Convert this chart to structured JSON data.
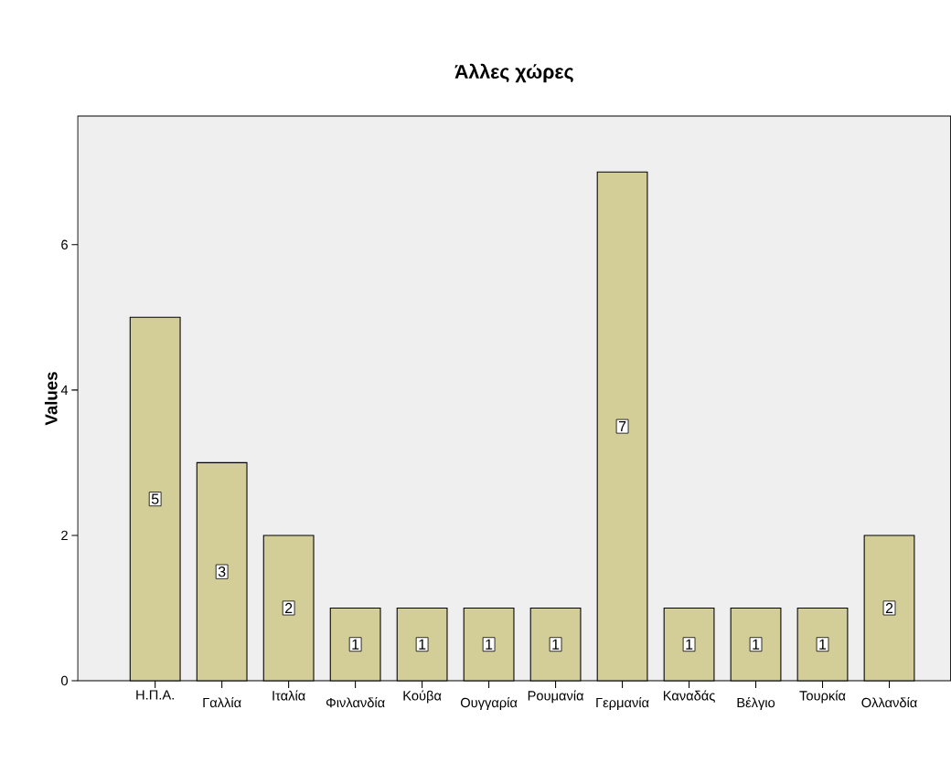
{
  "chart_data": {
    "type": "bar",
    "title": "Άλλες χώρες",
    "ylabel": "Values",
    "categories": [
      "Η.Π.Α.",
      "Γαλλία",
      "Ιταλία",
      "Φινλανδία",
      "Κούβα",
      "Ουγγαρία",
      "Ρουμανία",
      "Γερμανία",
      "Καναδάς",
      "Βέλγιο",
      "Τουρκία",
      "Ολλανδία"
    ],
    "values": [
      5,
      3,
      2,
      1,
      1,
      1,
      1,
      7,
      1,
      1,
      1,
      2
    ],
    "color": "#d3ce98",
    "ylim": [
      0,
      7.77
    ],
    "yticks": [
      0,
      2,
      4,
      6
    ],
    "data_labels": true
  }
}
